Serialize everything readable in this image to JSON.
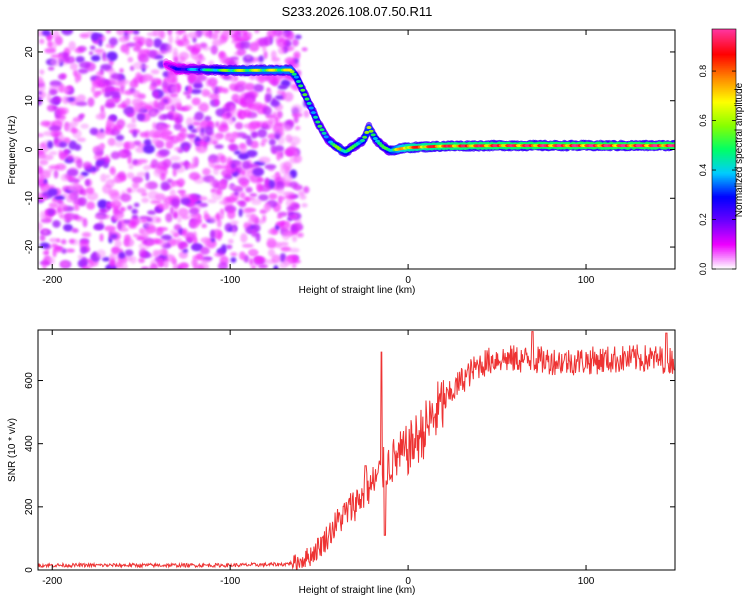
{
  "title": "S233.2026.108.07.50.R11",
  "chart_data": [
    {
      "id": "spectrogram",
      "type": "heatmap",
      "xlabel": "Height of straight line (km)",
      "ylabel": "Frequency (Hz)",
      "xlim": [
        -208,
        150
      ],
      "ylim": [
        -24.5,
        24.5
      ],
      "xticks": [
        -200,
        -100,
        0,
        100
      ],
      "xtick_labels": [
        "-200",
        "-100",
        "0",
        "100"
      ],
      "yticks": [
        -20,
        -10,
        0,
        10,
        20
      ],
      "ytick_labels": [
        "-20",
        "-10",
        "0",
        "10",
        "20"
      ],
      "colorbar": {
        "label": "Normalized spectral amplitude",
        "range": [
          0,
          0.97
        ],
        "ticks": [
          0,
          0.2,
          0.4,
          0.6,
          0.8
        ],
        "tick_labels": [
          "0.0",
          "0.2",
          "0.4",
          "0.6",
          "0.8"
        ],
        "colors": [
          "#ffffff",
          "#ee00ff",
          "#6a00ff",
          "#0000ff",
          "#00ccff",
          "#00ff66",
          "#88ff00",
          "#ffff00",
          "#ff8800",
          "#ff0000",
          "#ff3399"
        ]
      },
      "signal_track": {
        "x": [
          -136,
          -130,
          -100,
          -66,
          -63,
          -55,
          -50,
          -45,
          -42,
          -38,
          -35,
          -30,
          -25,
          -22,
          -18,
          -14,
          -10,
          -5,
          0,
          20,
          50,
          100,
          150
        ],
        "frequency_hz": [
          17.5,
          16.5,
          16.2,
          16.3,
          15,
          9,
          5,
          2,
          1,
          0,
          -0.5,
          0.8,
          2,
          4.5,
          2,
          0.5,
          -0.2,
          0.1,
          0.4,
          0.7,
          0.8,
          0.8,
          0.8
        ],
        "amplitude": [
          0.15,
          0.25,
          0.55,
          0.6,
          0.5,
          0.45,
          0.45,
          0.4,
          0.45,
          0.55,
          0.5,
          0.45,
          0.5,
          0.55,
          0.5,
          0.45,
          0.5,
          0.65,
          0.75,
          0.8,
          0.82,
          0.85,
          0.85
        ]
      },
      "noise_region_x": [
        -208,
        -65
      ]
    },
    {
      "id": "snr",
      "type": "line",
      "xlabel": "Height of straight line (km)",
      "ylabel": "SNR (10 * v/v)",
      "xlim": [
        -208,
        150
      ],
      "ylim": [
        0,
        760
      ],
      "xticks": [
        -200,
        -100,
        0,
        100
      ],
      "xtick_labels": [
        "-200",
        "-100",
        "0",
        "100"
      ],
      "yticks": [
        0,
        200,
        400,
        600
      ],
      "ytick_labels": [
        "0",
        "200",
        "400",
        "600"
      ],
      "color": "#ee3333",
      "trend": {
        "x": [
          -208,
          -100,
          -70,
          -62,
          -55,
          -48,
          -40,
          -30,
          -20,
          -15,
          -12,
          0,
          10,
          20,
          30,
          40,
          50,
          70,
          90,
          110,
          130,
          150
        ],
        "y": [
          15,
          15,
          18,
          25,
          45,
          85,
          150,
          210,
          270,
          310,
          330,
          380,
          450,
          530,
          600,
          650,
          670,
          665,
          660,
          665,
          670,
          665
        ]
      },
      "spikes": [
        {
          "x": -15,
          "y": 690
        },
        {
          "x": -13,
          "y": 110
        },
        {
          "x": -24,
          "y": 330
        },
        {
          "x": 70,
          "y": 755
        },
        {
          "x": 145,
          "y": 750
        }
      ]
    }
  ]
}
